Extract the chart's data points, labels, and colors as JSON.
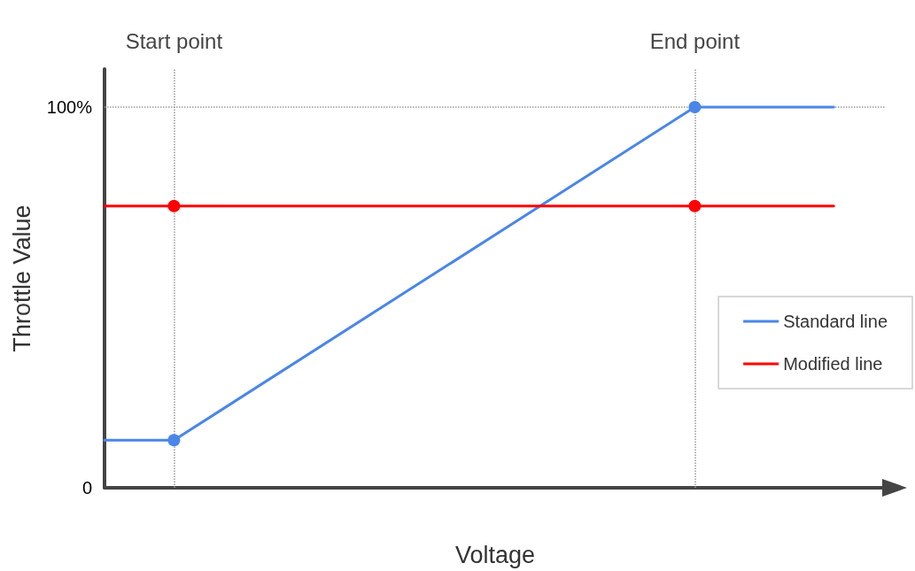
{
  "chart_data": {
    "type": "line",
    "xlabel": "Voltage",
    "ylabel": "Throttle Value",
    "categories": [
      null,
      null,
      null,
      null,
      "Start point",
      null,
      null,
      null,
      null,
      null,
      null,
      null,
      null,
      null,
      null,
      null,
      null,
      null,
      null,
      null,
      null,
      null,
      null,
      null,
      null,
      null,
      null,
      null,
      null,
      null,
      null,
      null,
      null,
      null,
      "End point",
      null,
      null,
      null,
      null,
      null,
      null,
      null,
      null,
      null,
      null,
      null
    ],
    "ylim": [
      0,
      110
    ],
    "yticks": [
      0,
      {
        "value": 100,
        "label": "100%"
      }
    ],
    "grid": false,
    "legend": "right",
    "marker": "circle",
    "line_style": "solid",
    "series": [
      {
        "name": "Standard line",
        "color": "#4a86e8",
        "values": [
          12.5,
          null,
          null,
          null,
          12.5,
          null,
          null,
          null,
          null,
          null,
          null,
          null,
          null,
          null,
          null,
          null,
          null,
          null,
          null,
          null,
          null,
          null,
          null,
          null,
          null,
          null,
          null,
          null,
          null,
          null,
          null,
          null,
          null,
          null,
          100,
          null,
          null,
          null,
          null,
          null,
          null,
          null,
          100,
          null,
          null,
          null
        ]
      },
      {
        "name": "Modified line",
        "color": "#ff0000",
        "values": [
          74,
          null,
          null,
          null,
          74,
          null,
          null,
          null,
          null,
          null,
          null,
          null,
          null,
          null,
          null,
          null,
          null,
          null,
          null,
          null,
          null,
          null,
          null,
          null,
          null,
          null,
          null,
          null,
          null,
          null,
          null,
          null,
          null,
          null,
          74,
          null,
          null,
          null,
          null,
          null,
          null,
          null,
          74,
          null,
          null,
          null
        ]
      }
    ],
    "ref_lines": [
      {
        "axis": "x",
        "value": "Start point",
        "label": null,
        "color": "#999999",
        "line_style": "dotted"
      },
      {
        "axis": "x",
        "value": "End point",
        "label": null,
        "color": "#999999",
        "line_style": "dotted"
      },
      {
        "axis": "y",
        "value": 100,
        "label": null,
        "color": "#999999",
        "line_style": "dotted"
      }
    ]
  }
}
